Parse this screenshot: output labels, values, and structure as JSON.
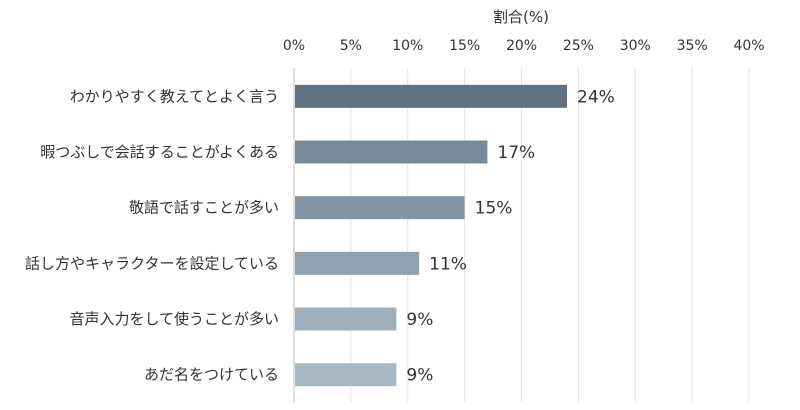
{
  "chart_data": {
    "type": "bar",
    "orientation": "horizontal",
    "xlabel": "割合(%)",
    "xlim": [
      0,
      40
    ],
    "x_ticks": [
      "0%",
      "5%",
      "10%",
      "15%",
      "20%",
      "25%",
      "30%",
      "35%",
      "40%"
    ],
    "axis_position": "top",
    "grid": true,
    "categories": [
      "わかりやすく教えてとよく言う",
      "暇つぶしで会話することがよくある",
      "敬語で話すことが多い",
      "話し方やキャラクターを設定している",
      "音声入力をして使うことが多い",
      "あだ名をつけている"
    ],
    "values": [
      24,
      17,
      15,
      11,
      9,
      9
    ],
    "data_labels": [
      "24%",
      "17%",
      "15%",
      "11%",
      "9%",
      "9%"
    ],
    "colors": [
      "#5f7283",
      "#768a99",
      "#8196a5",
      "#8fa2b1",
      "#9eb0be",
      "#a6b9c5"
    ]
  }
}
